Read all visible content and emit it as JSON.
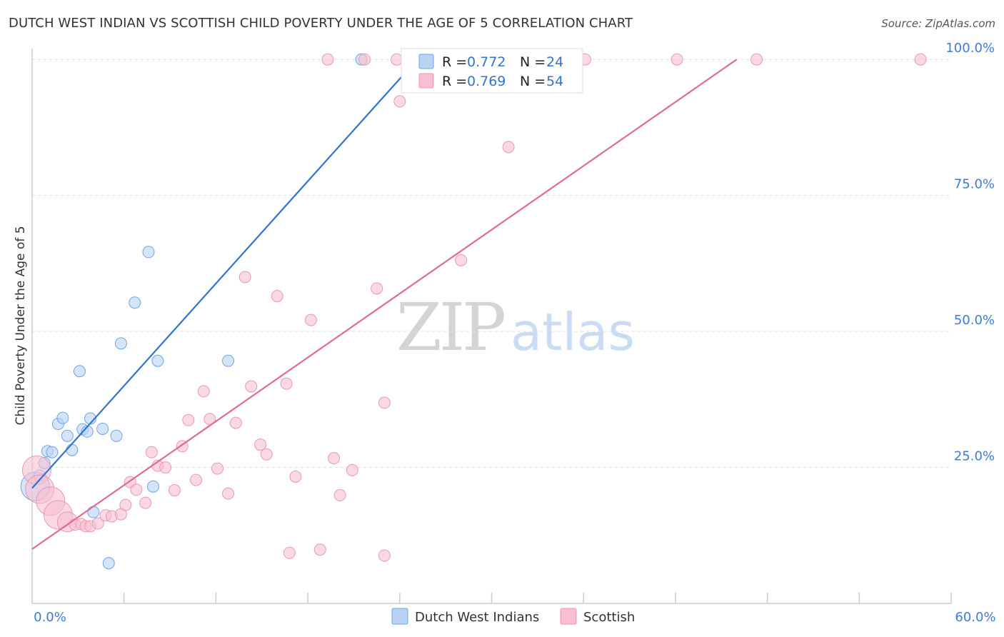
{
  "chart_data": {
    "type": "scatter",
    "title": "DUTCH WEST INDIAN VS SCOTTISH CHILD POVERTY UNDER THE AGE OF 5 CORRELATION CHART",
    "source": "Source: ZipAtlas.com",
    "xlabel": "",
    "ylabel": "Child Poverty Under the Age of 5",
    "xlim": [
      0,
      60
    ],
    "ylim": [
      0,
      102
    ],
    "x_tick_labels": [
      "0.0%",
      "60.0%"
    ],
    "y_ticks": [
      25,
      50,
      75,
      100
    ],
    "y_tick_labels": [
      "25.0%",
      "50.0%",
      "75.0%",
      "100.0%"
    ],
    "watermark": {
      "part1": "ZIP",
      "part2": "atlas"
    },
    "legend": [
      {
        "name": "Dutch West Indians",
        "color": "#6fa3e6",
        "fill": "#b9d3f5",
        "r_label": "R = ",
        "r_value": "0.772",
        "n_label": "N = ",
        "n_value": "24"
      },
      {
        "name": "Scottish",
        "color": "#e87ba0",
        "fill": "#f7bfd1",
        "r_label": "R = ",
        "r_value": "0.769",
        "n_label": "N = ",
        "n_value": "54"
      }
    ],
    "series": [
      {
        "name": "Dutch West Indians",
        "color": "#2f74d0",
        "point_fill": "#b9d3f5",
        "point_stroke": "#6fa3e6",
        "trend": {
          "x1": 0,
          "y1": 21.2,
          "x2": 24.5,
          "y2": 98
        },
        "points": [
          [
            0.2,
            21.5,
            3
          ],
          [
            0.5,
            23.5,
            1
          ],
          [
            0.8,
            25.8,
            1
          ],
          [
            1.0,
            28.0,
            1
          ],
          [
            1.3,
            27.8,
            1
          ],
          [
            1.7,
            33.0,
            1
          ],
          [
            2.0,
            34.1,
            1
          ],
          [
            2.3,
            30.8,
            1
          ],
          [
            2.6,
            28.2,
            1
          ],
          [
            3.1,
            42.7,
            1
          ],
          [
            3.3,
            32.0,
            1
          ],
          [
            3.6,
            31.6,
            1
          ],
          [
            3.8,
            34.0,
            1
          ],
          [
            4.0,
            16.8,
            1
          ],
          [
            4.6,
            32.1,
            1
          ],
          [
            5.0,
            7.4,
            1
          ],
          [
            5.5,
            30.8,
            1
          ],
          [
            5.8,
            47.8,
            1
          ],
          [
            6.7,
            55.3,
            1
          ],
          [
            7.6,
            64.6,
            1
          ],
          [
            7.9,
            21.5,
            1
          ],
          [
            8.2,
            44.6,
            1
          ],
          [
            12.8,
            44.6,
            1
          ],
          [
            21.5,
            100,
            1
          ]
        ]
      },
      {
        "name": "Scottish",
        "color": "#e06a94",
        "point_fill": "#f7bfd1",
        "point_stroke": "#eb97b5",
        "trend": {
          "x1": 0,
          "y1": 10.0,
          "x2": 46,
          "y2": 100
        },
        "points": [
          [
            0.3,
            24.5,
            3
          ],
          [
            0.5,
            21.0,
            3
          ],
          [
            1.2,
            18.8,
            3
          ],
          [
            1.7,
            16.3,
            3
          ],
          [
            2.3,
            15.0,
            2
          ],
          [
            2.8,
            14.5,
            1
          ],
          [
            3.2,
            14.6,
            1
          ],
          [
            3.5,
            14.2,
            1
          ],
          [
            3.8,
            14.2,
            1
          ],
          [
            4.3,
            14.7,
            1
          ],
          [
            4.8,
            16.2,
            1
          ],
          [
            5.2,
            16.0,
            1
          ],
          [
            5.8,
            16.4,
            1
          ],
          [
            6.1,
            18.1,
            1
          ],
          [
            6.4,
            22.3,
            1
          ],
          [
            6.8,
            20.9,
            1
          ],
          [
            7.4,
            18.5,
            1
          ],
          [
            7.8,
            27.8,
            1
          ],
          [
            8.2,
            25.3,
            1
          ],
          [
            8.7,
            25.0,
            1
          ],
          [
            9.3,
            20.8,
            1
          ],
          [
            9.8,
            28.9,
            1
          ],
          [
            10.2,
            33.7,
            1
          ],
          [
            10.7,
            22.7,
            1
          ],
          [
            11.2,
            39.0,
            1
          ],
          [
            11.6,
            33.9,
            1
          ],
          [
            12.1,
            24.8,
            1
          ],
          [
            12.8,
            20.2,
            1
          ],
          [
            13.3,
            33.2,
            1
          ],
          [
            13.9,
            60.0,
            1
          ],
          [
            14.3,
            39.9,
            1
          ],
          [
            14.9,
            29.2,
            1
          ],
          [
            15.3,
            27.4,
            1
          ],
          [
            16.0,
            56.5,
            1
          ],
          [
            16.6,
            40.4,
            1
          ],
          [
            16.8,
            9.3,
            1
          ],
          [
            17.2,
            23.3,
            1
          ],
          [
            18.2,
            52.1,
            1
          ],
          [
            18.8,
            9.9,
            1
          ],
          [
            19.3,
            100,
            1
          ],
          [
            19.7,
            26.7,
            1
          ],
          [
            20.1,
            19.9,
            1
          ],
          [
            20.9,
            24.5,
            1
          ],
          [
            21.7,
            100,
            1
          ],
          [
            22.5,
            57.9,
            1
          ],
          [
            23.0,
            8.8,
            1
          ],
          [
            23.0,
            36.9,
            1
          ],
          [
            23.8,
            100,
            1
          ],
          [
            24.0,
            92.3,
            1
          ],
          [
            28.0,
            63.1,
            1
          ],
          [
            31.1,
            83.9,
            1
          ],
          [
            36.1,
            100,
            1
          ],
          [
            42.1,
            100,
            1
          ],
          [
            47.3,
            100,
            1
          ],
          [
            58.0,
            100,
            1
          ]
        ]
      }
    ]
  }
}
